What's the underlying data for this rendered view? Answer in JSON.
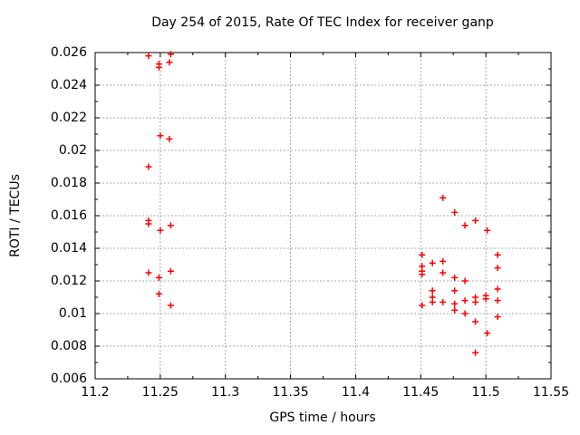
{
  "chart_data": {
    "type": "scatter",
    "title": "Day 254 of 2015, Rate Of TEC Index for receiver ganp",
    "xlabel": "GPS time / hours",
    "ylabel": "ROTI / TECUs",
    "xlim": [
      11.2,
      11.55
    ],
    "ylim": [
      0.006,
      0.026
    ],
    "xticks": [
      "11.2",
      "11.25",
      "11.3",
      "11.35",
      "11.4",
      "11.45",
      "11.5",
      "11.55"
    ],
    "yticks": [
      "0.006",
      "0.008",
      "0.01",
      "0.012",
      "0.014",
      "0.016",
      "0.018",
      "0.02",
      "0.022",
      "0.024",
      "0.026"
    ],
    "grid": true,
    "legend": "none",
    "marker": "plus",
    "marker_color": "#ff0000",
    "grid_color": "#a8a8a8",
    "axis_color": "#000000",
    "series": [
      {
        "name": "ROTI",
        "points": [
          [
            11.241,
            0.0258
          ],
          [
            11.258,
            0.0259
          ],
          [
            11.249,
            0.0253
          ],
          [
            11.249,
            0.0251
          ],
          [
            11.257,
            0.0254
          ],
          [
            11.25,
            0.0209
          ],
          [
            11.257,
            0.0207
          ],
          [
            11.241,
            0.019
          ],
          [
            11.241,
            0.0157
          ],
          [
            11.241,
            0.0155
          ],
          [
            11.258,
            0.0154
          ],
          [
            11.25,
            0.0151
          ],
          [
            11.241,
            0.0125
          ],
          [
            11.258,
            0.0126
          ],
          [
            11.249,
            0.0122
          ],
          [
            11.249,
            0.0112
          ],
          [
            11.258,
            0.0105
          ],
          [
            11.467,
            0.0171
          ],
          [
            11.476,
            0.0162
          ],
          [
            11.484,
            0.0154
          ],
          [
            11.492,
            0.0157
          ],
          [
            11.501,
            0.0151
          ],
          [
            11.451,
            0.0136
          ],
          [
            11.509,
            0.0136
          ],
          [
            11.459,
            0.0131
          ],
          [
            11.467,
            0.0132
          ],
          [
            11.451,
            0.0129
          ],
          [
            11.451,
            0.0126
          ],
          [
            11.451,
            0.0124
          ],
          [
            11.509,
            0.0128
          ],
          [
            11.467,
            0.0125
          ],
          [
            11.476,
            0.0122
          ],
          [
            11.484,
            0.012
          ],
          [
            11.509,
            0.0115
          ],
          [
            11.459,
            0.0114
          ],
          [
            11.476,
            0.0114
          ],
          [
            11.459,
            0.011
          ],
          [
            11.459,
            0.0107
          ],
          [
            11.467,
            0.0107
          ],
          [
            11.476,
            0.0106
          ],
          [
            11.476,
            0.0102
          ],
          [
            11.484,
            0.0108
          ],
          [
            11.484,
            0.01
          ],
          [
            11.492,
            0.011
          ],
          [
            11.492,
            0.0107
          ],
          [
            11.5,
            0.0111
          ],
          [
            11.5,
            0.0109
          ],
          [
            11.509,
            0.0108
          ],
          [
            11.451,
            0.0105
          ],
          [
            11.492,
            0.0095
          ],
          [
            11.509,
            0.0098
          ],
          [
            11.501,
            0.0088
          ],
          [
            11.492,
            0.0076
          ]
        ]
      }
    ]
  }
}
